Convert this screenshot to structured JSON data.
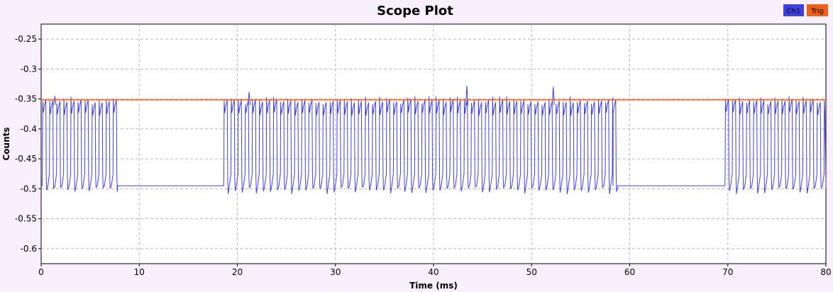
{
  "colors": {
    "background": "#f8f0fd",
    "plot_background": "#ffffff",
    "grid": "#b8b8b8",
    "ch1": "#4040e0",
    "trig": "#f06018"
  },
  "chart_data": {
    "type": "line",
    "title": "Scope Plot",
    "xlabel": "Time (ms)",
    "ylabel": "Counts",
    "xlim": [
      0,
      80
    ],
    "ylim": [
      -0.625,
      -0.225
    ],
    "x_ticks": [
      0,
      10,
      20,
      30,
      40,
      50,
      60,
      70,
      80
    ],
    "x_tick_labels": [
      "0",
      "10",
      "20",
      "30",
      "40",
      "50",
      "60",
      "70",
      "80"
    ],
    "y_ticks": [
      -0.25,
      -0.3,
      -0.35,
      -0.4,
      -0.45,
      -0.5,
      -0.55,
      -0.6
    ],
    "y_tick_labels": [
      "-0.25",
      "-0.3",
      "-0.35",
      "-0.4",
      "-0.45",
      "-0.5",
      "-0.55",
      "-0.6"
    ],
    "grid": true,
    "legend_position": "top-right",
    "legend": [
      {
        "label": "Ch1",
        "color": "#4040e0"
      },
      {
        "label": "Trig",
        "color": "#f06018"
      }
    ],
    "trigger_level": -0.3515,
    "series": [
      {
        "name": "Ch1",
        "color": "#4040e0",
        "baseline": -0.495,
        "pulse_level": -0.36,
        "burst_period_ms": 0.72,
        "bursts": [
          {
            "start": 0.1,
            "end": 7.8
          },
          {
            "start": 18.6,
            "end": 58.3
          },
          {
            "start": 69.7,
            "end": 80.0
          }
        ],
        "notable_peaks": [
          {
            "x": 43.4,
            "y": -0.328
          },
          {
            "x": 52.2,
            "y": -0.33
          },
          {
            "x": 21.2,
            "y": -0.338
          },
          {
            "x": 1.4,
            "y": -0.345
          }
        ]
      },
      {
        "name": "Trig",
        "color": "#f06018",
        "x": [
          0,
          80
        ],
        "y": [
          -0.3515,
          -0.3515
        ]
      }
    ]
  }
}
